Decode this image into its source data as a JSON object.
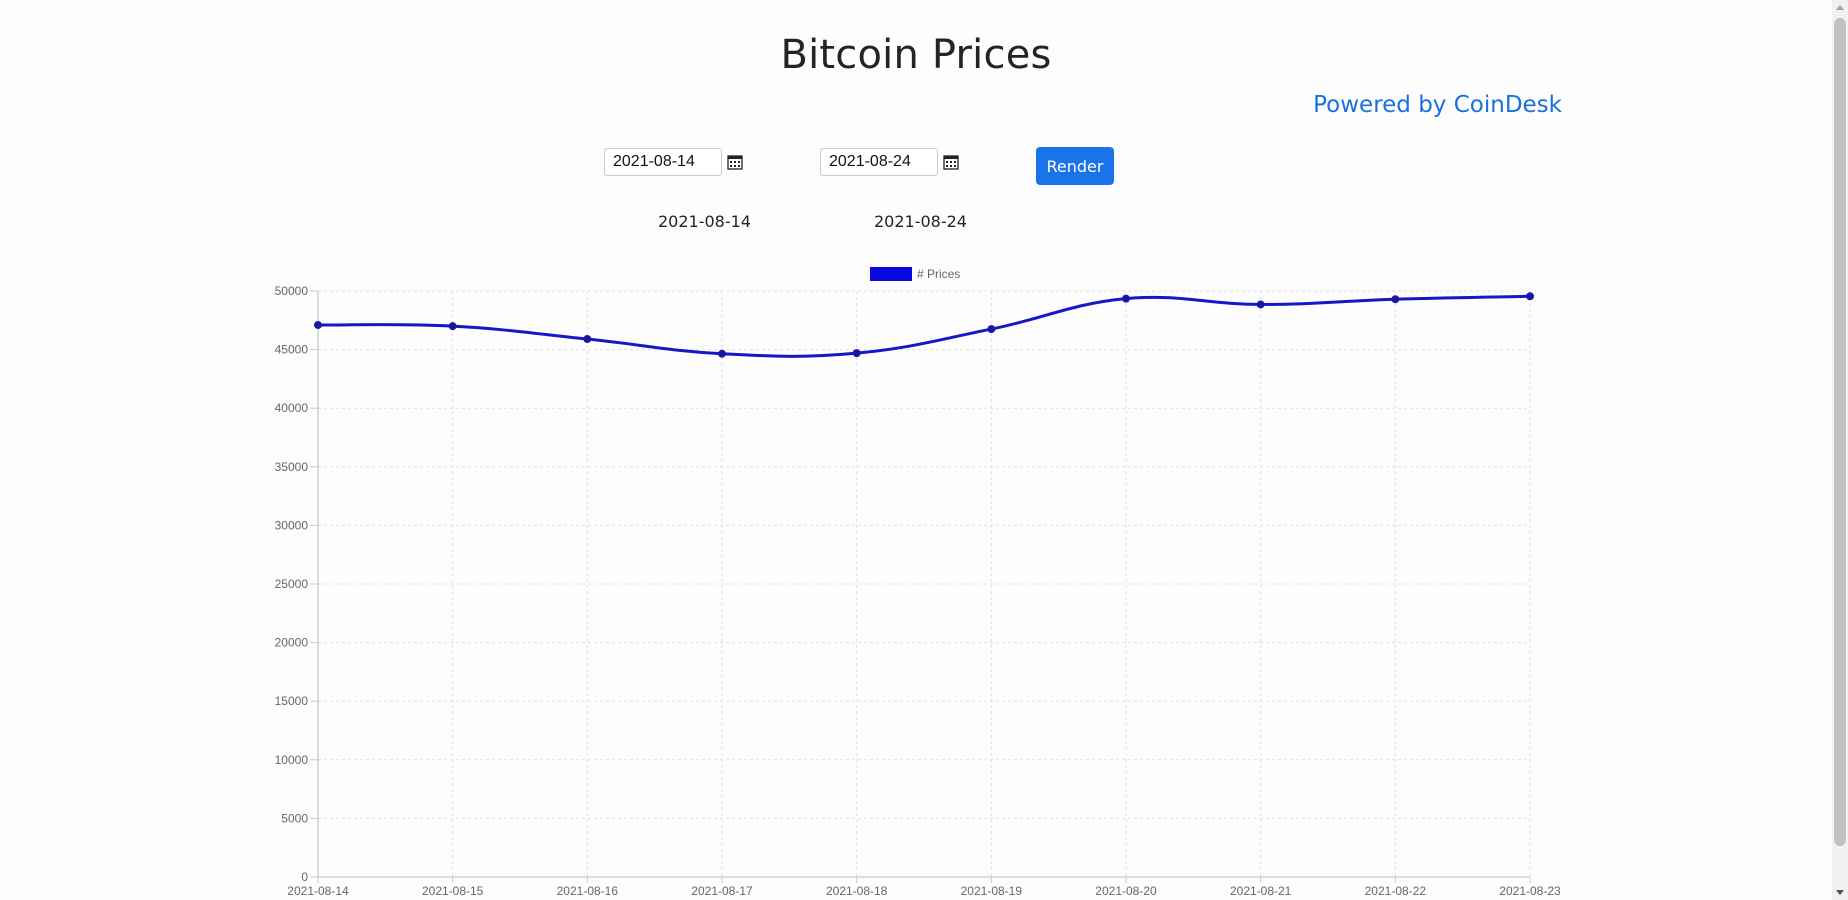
{
  "header": {
    "title": "Bitcoin Prices",
    "powered_by": "Powered by CoinDesk"
  },
  "controls": {
    "start_date": "2021-08-14",
    "end_date": "2021-08-24",
    "render_label": "Render",
    "calendar_icon": "calendar-icon"
  },
  "selected": {
    "start": "2021-08-14",
    "end": "2021-08-24"
  },
  "colors": {
    "accent": "#1a73e8",
    "link": "#1b6fe0",
    "series": "#0a0adf"
  },
  "chart_data": {
    "type": "line",
    "legend": "# Prices",
    "legend_position": "top-center",
    "grid": true,
    "smooth": true,
    "x": [
      "2021-08-14",
      "2021-08-15",
      "2021-08-16",
      "2021-08-17",
      "2021-08-18",
      "2021-08-19",
      "2021-08-20",
      "2021-08-21",
      "2021-08-22",
      "2021-08-23"
    ],
    "series": [
      {
        "name": "# Prices",
        "values": [
          47100,
          47000,
          45900,
          44650,
          44700,
          46750,
          49350,
          48850,
          49300,
          49550
        ]
      }
    ],
    "yticks": [
      0,
      5000,
      10000,
      15000,
      20000,
      25000,
      30000,
      35000,
      40000,
      45000,
      50000
    ],
    "ylim": [
      0,
      50000
    ]
  }
}
